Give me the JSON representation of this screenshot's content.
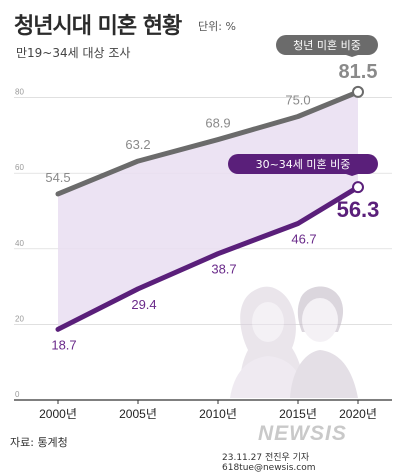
{
  "header": {
    "title": "청년시대 미혼 현황",
    "unit": "단위: %",
    "subtitle": "만19~34세 대상 조사"
  },
  "footer": {
    "source": "자료: 통계청",
    "logo": "NEWSIS",
    "credit": "23.11.27 전진우 기자 618tue@newsis.com"
  },
  "colors": {
    "top_series": "#6b6b6b",
    "bottom_series": "#5a1f7a",
    "fill": "#e9def1",
    "badge_top": "#6b6b6b",
    "badge_bottom": "#5a1f7a",
    "highlight_top": "#8a8a8a",
    "highlight_bottom": "#5a1f7a"
  },
  "chart_data": {
    "type": "line",
    "x": [
      "2000년",
      "2005년",
      "2010년",
      "2015년",
      "2020년"
    ],
    "yticks": [
      0,
      20,
      40,
      60,
      80
    ],
    "ylim": [
      0,
      90
    ],
    "grid": true,
    "series": [
      {
        "name": "청년 미혼 비중",
        "values": [
          54.5,
          63.2,
          68.9,
          75.0,
          81.5
        ],
        "labels": [
          "54.5",
          "63.2",
          "68.9",
          "75.0",
          "81.5"
        ]
      },
      {
        "name": "30~34세 미혼 비중",
        "values": [
          18.7,
          29.4,
          38.7,
          46.7,
          56.3
        ],
        "labels": [
          "18.7",
          "29.4",
          "38.7",
          "46.7",
          "56.3"
        ]
      }
    ]
  }
}
